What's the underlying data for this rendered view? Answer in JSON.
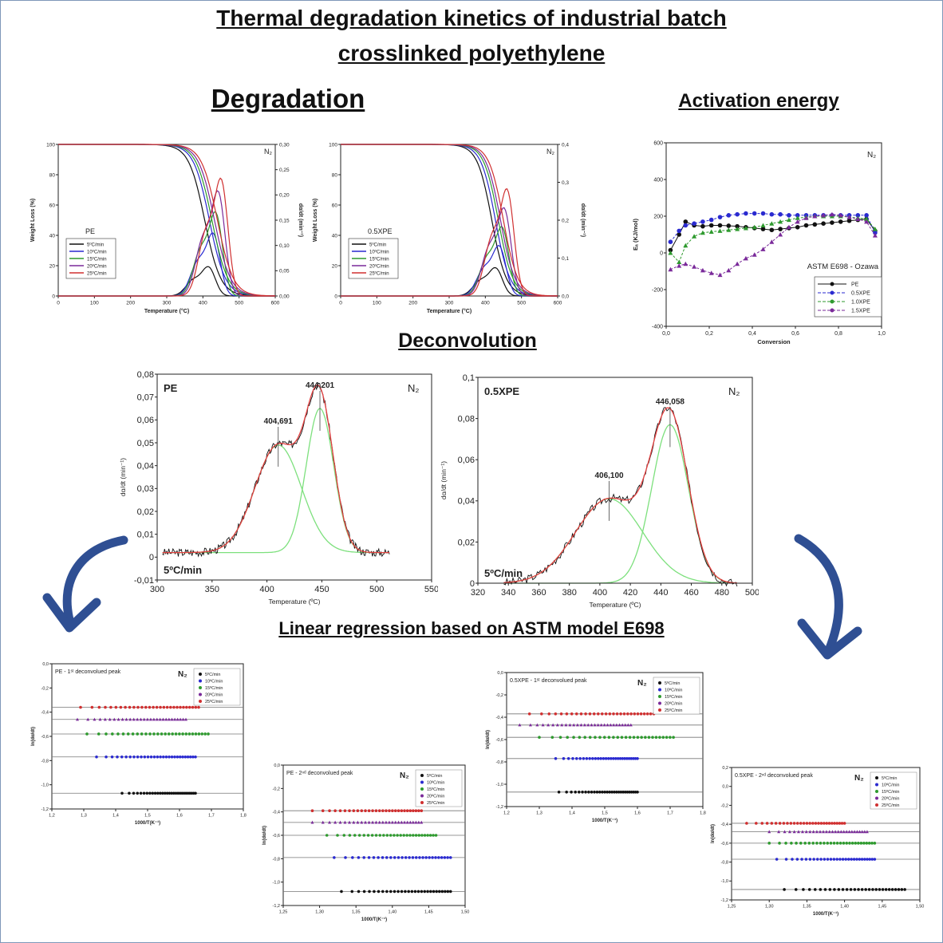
{
  "page": {
    "title_line1": "Thermal degradation kinetics of industrial batch",
    "title_line2": "crosslinked polyethylene",
    "section_degradation": "Degradation",
    "section_activation": "Activation energy",
    "section_deconvolution": "Deconvolution",
    "section_regression": "Linear regression based on ASTM model E698"
  },
  "colors": {
    "5": "#111111",
    "10": "#2a2ad0",
    "15": "#2e9a2e",
    "20": "#7a2a9a",
    "25": "#d03030",
    "fit": "#e34040",
    "gauss": "#7de07d",
    "arrow": "#2f4f93"
  },
  "chart_data": [
    {
      "id": "tga_pe",
      "type": "line",
      "label": "PE",
      "atmosphere": "N₂",
      "xlabel": "Temperature (°C)",
      "ylabel": "Weight Loss (%)",
      "y2label": "dα/dt (min⁻¹)",
      "xlim": [
        0,
        600
      ],
      "ylim": [
        0,
        100
      ],
      "y2lim": [
        0,
        0.3
      ],
      "xticks": [
        "0",
        "100",
        "200",
        "300",
        "400",
        "500",
        "600"
      ],
      "yticks": [
        "0",
        "20",
        "40",
        "60",
        "80",
        "100"
      ],
      "y2ticks": [
        "0,00",
        "0,05",
        "0,10",
        "0,15",
        "0,20",
        "0,25",
        "0,30"
      ],
      "series": [
        {
          "name": "5ºC/min",
          "key": "5",
          "tm": 405,
          "w": 22,
          "peak": 0.07
        },
        {
          "name": "10ºC/min",
          "key": "10",
          "tm": 418,
          "w": 22,
          "peak": 0.15
        },
        {
          "name": "15ºC/min",
          "key": "15",
          "tm": 425,
          "w": 22,
          "peak": 0.2
        },
        {
          "name": "20ºC/min",
          "key": "20",
          "tm": 432,
          "w": 22,
          "peak": 0.25
        },
        {
          "name": "25ºC/min",
          "key": "25",
          "tm": 440,
          "w": 22,
          "peak": 0.28
        }
      ]
    },
    {
      "id": "tga_xpe",
      "type": "line",
      "label": "0.5XPE",
      "atmosphere": "N₂",
      "xlabel": "Temperature (°C)",
      "ylabel": "Weight Loss (%)",
      "y2label": "dα/dt (min⁻¹)",
      "xlim": [
        0,
        600
      ],
      "ylim": [
        0,
        100
      ],
      "y2lim": [
        0,
        0.4
      ],
      "xticks": [
        "0",
        "100",
        "200",
        "300",
        "400",
        "500",
        "600"
      ],
      "yticks": [
        "0",
        "20",
        "40",
        "60",
        "80",
        "100"
      ],
      "y2ticks": [
        "0,0",
        "0,1",
        "0,2",
        "0,3",
        "0,4"
      ],
      "series": [
        {
          "name": "5ºC/min",
          "key": "5",
          "tm": 418,
          "w": 20,
          "peak": 0.09
        },
        {
          "name": "10ºC/min",
          "key": "10",
          "tm": 428,
          "w": 20,
          "peak": 0.16
        },
        {
          "name": "15ºC/min",
          "key": "15",
          "tm": 436,
          "w": 20,
          "peak": 0.22
        },
        {
          "name": "20ºC/min",
          "key": "20",
          "tm": 442,
          "w": 20,
          "peak": 0.28
        },
        {
          "name": "25ºC/min",
          "key": "25",
          "tm": 450,
          "w": 20,
          "peak": 0.34
        }
      ]
    },
    {
      "id": "activation",
      "type": "line",
      "atmosphere": "N₂",
      "annotation": "ASTM E698 - Ozawa",
      "xlabel": "Conversion",
      "ylabel": "Eₐ (KJ/mol)",
      "xlim": [
        0,
        1.0
      ],
      "ylim": [
        -400,
        600
      ],
      "xticks": [
        "0,0",
        "0,2",
        "0,4",
        "0,6",
        "0,8",
        "1,0"
      ],
      "yticks": [
        "-400",
        "-200",
        "0",
        "200",
        "400",
        "600"
      ],
      "x": [
        0.02,
        0.06,
        0.09,
        0.13,
        0.17,
        0.21,
        0.25,
        0.29,
        0.33,
        0.37,
        0.41,
        0.45,
        0.49,
        0.53,
        0.57,
        0.61,
        0.65,
        0.69,
        0.73,
        0.77,
        0.81,
        0.85,
        0.89,
        0.93,
        0.97
      ],
      "series": [
        {
          "name": "PE",
          "key": "5",
          "values": [
            15,
            100,
            170,
            150,
            145,
            150,
            150,
            148,
            145,
            140,
            135,
            130,
            125,
            130,
            135,
            140,
            150,
            155,
            160,
            165,
            170,
            175,
            180,
            185,
            120
          ]
        },
        {
          "name": "0.5XPE",
          "key": "10",
          "values": [
            60,
            120,
            150,
            160,
            170,
            180,
            195,
            205,
            210,
            215,
            215,
            215,
            210,
            210,
            205,
            205,
            205,
            205,
            205,
            205,
            205,
            205,
            205,
            205,
            110
          ]
        },
        {
          "name": "1.0XPE",
          "key": "15",
          "values": [
            0,
            -50,
            40,
            90,
            110,
            115,
            120,
            125,
            130,
            135,
            140,
            150,
            160,
            170,
            180,
            190,
            195,
            200,
            200,
            200,
            200,
            195,
            190,
            185,
            130
          ]
        },
        {
          "name": "1.5XPE",
          "key": "20",
          "values": [
            -90,
            -70,
            -60,
            -75,
            -95,
            -110,
            -120,
            -95,
            -60,
            -30,
            -10,
            20,
            60,
            100,
            140,
            170,
            190,
            200,
            205,
            210,
            205,
            195,
            185,
            170,
            95
          ]
        }
      ]
    },
    {
      "id": "deconv_pe",
      "type": "line",
      "label": "PE",
      "atmosphere": "N₂",
      "rate": "5ºC/min",
      "xlabel": "Temperature (ºC)",
      "ylabel": "dα/dt (min⁻¹)",
      "xlim": [
        290,
        550
      ],
      "ylim": [
        -0.01,
        0.08
      ],
      "xticks": [
        "300",
        "350",
        "400",
        "450",
        "500",
        "550"
      ],
      "yticks": [
        "-0,01",
        "0",
        "0,01",
        "0,02",
        "0,03",
        "0,04",
        "0,05",
        "0,06",
        "0,07",
        "0,08"
      ],
      "peaks": [
        {
          "label": "404,691",
          "x": 404.691,
          "y": 0.047,
          "w": 22
        },
        {
          "label": "444,201",
          "x": 444.201,
          "y": 0.063,
          "w": 13
        }
      ],
      "baseline": 0.002,
      "xrange": [
        295,
        510
      ]
    },
    {
      "id": "deconv_xpe",
      "type": "line",
      "label": "0.5XPE",
      "atmosphere": "N₂",
      "rate": "5ºC/min",
      "xlabel": "Temperature (ºC)",
      "ylabel": "dα/dt (min⁻¹)",
      "xlim": [
        320,
        500
      ],
      "ylim": [
        0,
        0.1
      ],
      "xticks": [
        "320",
        "340",
        "360",
        "380",
        "400",
        "420",
        "440",
        "460",
        "480",
        "500"
      ],
      "yticks": [
        "0",
        "0,02",
        "0,04",
        "0,06",
        "0,08",
        "0,1"
      ],
      "peaks": [
        {
          "label": "406,100",
          "x": 406.1,
          "y": 0.041,
          "w": 22
        },
        {
          "label": "446,058",
          "x": 446.058,
          "y": 0.077,
          "w": 12
        }
      ],
      "baseline": 0.0,
      "xrange": [
        337,
        490
      ]
    },
    {
      "id": "reg_pe_1",
      "type": "scatter",
      "label": "PE - 1ˢᵗ deconvolued peak",
      "atmosphere": "N₂",
      "xlabel": "1000/T(K⁻¹)",
      "ylabel": "ln(dα/dt)",
      "xlim": [
        1.2,
        1.8
      ],
      "ylim": [
        -1.2,
        0.0
      ],
      "xticks": [
        "1,2",
        "1,3",
        "1,4",
        "1,5",
        "1,6",
        "1,7",
        "1,8"
      ],
      "yticks": [
        "-1,2",
        "-1,0",
        "-0,8",
        "-0,6",
        "-0,4",
        "-0,2",
        "0,0"
      ],
      "series": [
        {
          "name": "5ºC/min",
          "key": "5",
          "y": -1.07,
          "x0": 1.42,
          "x1": 1.65
        },
        {
          "name": "10ºC/min",
          "key": "10",
          "y": -0.77,
          "x0": 1.34,
          "x1": 1.65
        },
        {
          "name": "15ºC/min",
          "key": "15",
          "y": -0.58,
          "x0": 1.31,
          "x1": 1.69
        },
        {
          "name": "20ºC/min",
          "key": "20",
          "y": -0.46,
          "x0": 1.28,
          "x1": 1.62
        },
        {
          "name": "25ºC/min",
          "key": "25",
          "y": -0.36,
          "x0": 1.29,
          "x1": 1.66
        }
      ]
    },
    {
      "id": "reg_pe_2",
      "type": "scatter",
      "label": "PE - 2ⁿᵈ deconvolued peak",
      "atmosphere": "N₂",
      "xlabel": "1000/T(K⁻¹)",
      "ylabel": "ln(dα/dt)",
      "xlim": [
        1.25,
        1.5
      ],
      "ylim": [
        -1.2,
        0.0
      ],
      "xticks": [
        "1,25",
        "1,30",
        "1,35",
        "1,40",
        "1,45",
        "1,50"
      ],
      "yticks": [
        "-1,2",
        "-1,0",
        "-0,8",
        "-0,6",
        "-0,4",
        "-0,2",
        "0,0"
      ],
      "series": [
        {
          "name": "5ºC/min",
          "key": "5",
          "y": -1.08,
          "x0": 1.33,
          "x1": 1.48
        },
        {
          "name": "10ºC/min",
          "key": "10",
          "y": -0.79,
          "x0": 1.32,
          "x1": 1.48
        },
        {
          "name": "15ºC/min",
          "key": "15",
          "y": -0.6,
          "x0": 1.31,
          "x1": 1.46
        },
        {
          "name": "20ºC/min",
          "key": "20",
          "y": -0.49,
          "x0": 1.29,
          "x1": 1.44
        },
        {
          "name": "25ºC/min",
          "key": "25",
          "y": -0.39,
          "x0": 1.29,
          "x1": 1.44
        }
      ]
    },
    {
      "id": "reg_xpe_1",
      "type": "scatter",
      "label": "0.5XPE - 1ˢᵗ deconvolued peak",
      "atmosphere": "N₂",
      "xlabel": "1000/T(K⁻¹)",
      "ylabel": "ln(dα/dt)",
      "xlim": [
        1.2,
        1.8
      ],
      "ylim": [
        -1.2,
        0.0
      ],
      "xticks": [
        "1,2",
        "1,3",
        "1,4",
        "1,5",
        "1,6",
        "1,7",
        "1,8"
      ],
      "yticks": [
        "-1,2",
        "-1,0",
        "-0,8",
        "-0,6",
        "-0,4",
        "-0,2",
        "0,0"
      ],
      "series": [
        {
          "name": "5ºC/min",
          "key": "5",
          "y": -1.07,
          "x0": 1.36,
          "x1": 1.6
        },
        {
          "name": "10ºC/min",
          "key": "10",
          "y": -0.77,
          "x0": 1.35,
          "x1": 1.6
        },
        {
          "name": "15ºC/min",
          "key": "15",
          "y": -0.58,
          "x0": 1.3,
          "x1": 1.71
        },
        {
          "name": "20ºC/min",
          "key": "20",
          "y": -0.47,
          "x0": 1.24,
          "x1": 1.58
        },
        {
          "name": "25ºC/min",
          "key": "25",
          "y": -0.37,
          "x0": 1.27,
          "x1": 1.65
        }
      ]
    },
    {
      "id": "reg_xpe_2",
      "type": "scatter",
      "label": "0.5XPE - 2ⁿᵈ deconvolued peak",
      "atmosphere": "N₂",
      "xlabel": "1000/T(K⁻¹)",
      "ylabel": "ln(dα/dt)",
      "xlim": [
        1.25,
        1.5
      ],
      "ylim": [
        -1.2,
        0.2
      ],
      "xticks": [
        "1,25",
        "1,30",
        "1,35",
        "1,40",
        "1,45",
        "1,50"
      ],
      "yticks": [
        "-1,2",
        "-1,0",
        "-0,8",
        "-0,6",
        "-0,4",
        "-0,2",
        "0,0",
        "0,2"
      ],
      "series": [
        {
          "name": "5ºC/min",
          "key": "5",
          "y": -1.09,
          "x0": 1.32,
          "x1": 1.48
        },
        {
          "name": "10ºC/min",
          "key": "10",
          "y": -0.77,
          "x0": 1.31,
          "x1": 1.44
        },
        {
          "name": "15ºC/min",
          "key": "15",
          "y": -0.6,
          "x0": 1.3,
          "x1": 1.44
        },
        {
          "name": "20ºC/min",
          "key": "20",
          "y": -0.48,
          "x0": 1.3,
          "x1": 1.43
        },
        {
          "name": "25ºC/min",
          "key": "25",
          "y": -0.39,
          "x0": 1.27,
          "x1": 1.4
        }
      ]
    }
  ]
}
